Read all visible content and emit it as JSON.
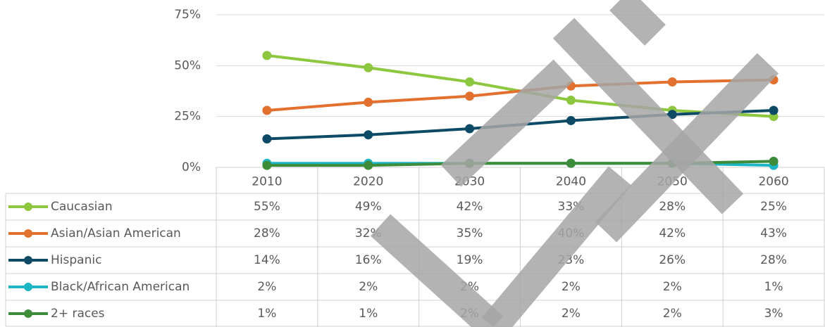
{
  "chart_data": {
    "type": "line",
    "categories": [
      "2010",
      "2020",
      "2030",
      "2040",
      "2050",
      "2060"
    ],
    "series": [
      {
        "name": "Caucasian",
        "color": "#8dc63f",
        "values": [
          55,
          49,
          42,
          33,
          28,
          25
        ],
        "value_labels": [
          "55%",
          "49%",
          "42%",
          "33%",
          "28%",
          "25%"
        ]
      },
      {
        "name": "Asian/Asian American",
        "color": "#e2702e",
        "values": [
          28,
          32,
          35,
          40,
          42,
          43
        ],
        "value_labels": [
          "28%",
          "32%",
          "35%",
          "40%",
          "42%",
          "43%"
        ]
      },
      {
        "name": "Hispanic",
        "color": "#0c4a66",
        "values": [
          14,
          16,
          19,
          23,
          26,
          28
        ],
        "value_labels": [
          "14%",
          "16%",
          "19%",
          "23%",
          "26%",
          "28%"
        ]
      },
      {
        "name": "Black/African American",
        "color": "#1bb5c6",
        "values": [
          2,
          2,
          2,
          2,
          2,
          1
        ],
        "value_labels": [
          "2%",
          "2%",
          "2%",
          "2%",
          "2%",
          "1%"
        ]
      },
      {
        "name": "2+ races",
        "color": "#3c8c3a",
        "values": [
          1,
          1,
          2,
          2,
          2,
          3
        ],
        "value_labels": [
          "1%",
          "1%",
          "2%",
          "2%",
          "2%",
          "3%"
        ]
      }
    ],
    "ylim": [
      0,
      75
    ],
    "yticks": [
      {
        "value": 0,
        "label": "0%"
      },
      {
        "value": 25,
        "label": "25%"
      },
      {
        "value": 50,
        "label": "50%"
      },
      {
        "value": 75,
        "label": "75%"
      }
    ],
    "grid": true
  }
}
